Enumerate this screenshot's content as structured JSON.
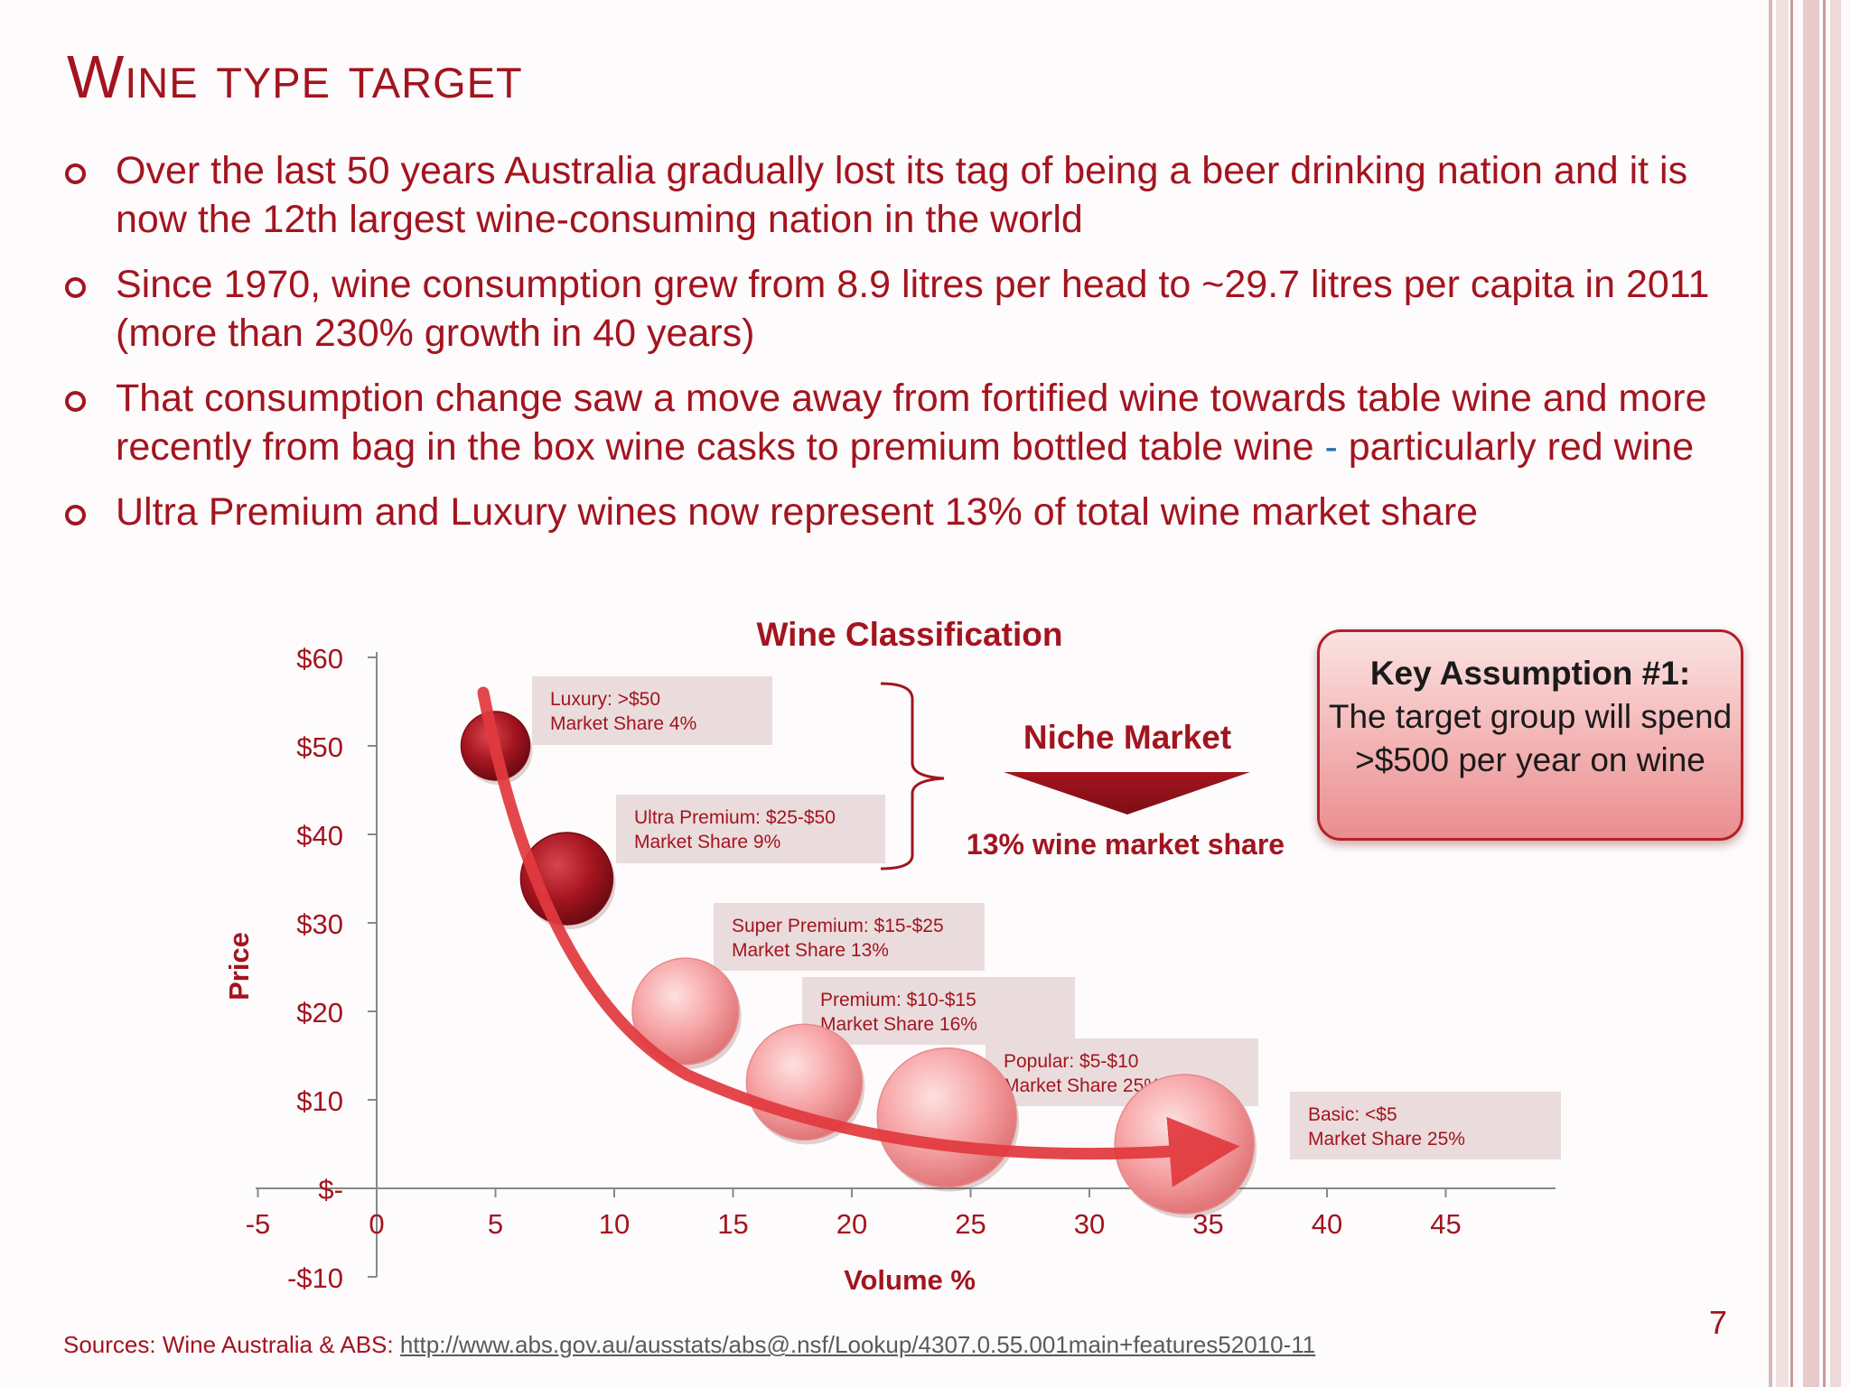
{
  "slide": {
    "title": "Wine type target",
    "bullets": [
      {
        "text": "Over the last 50 years Australia gradually lost its tag of being a beer drinking nation and it is now the 12th largest wine-consuming nation in the world"
      },
      {
        "text": "Since 1970, wine consumption grew from 8.9 litres per head to ~29.7 litres per capita in 2011 (more than 230% growth in 40 years)"
      },
      {
        "text_a": "That consumption change saw a move away from fortified wine towards table wine and more recently from bag in the box wine casks to premium bottled table wine ",
        "dash": "-",
        "text_b": " particularly red wine"
      },
      {
        "text": "Ultra Premium and Luxury wines now represent 13% of total wine market share"
      }
    ],
    "niche": {
      "label": "Niche Market",
      "share": "13% wine market share"
    },
    "callout": {
      "heading": "Key Assumption #1:",
      "body": "The target group will spend >$500 per year on wine"
    },
    "source": {
      "prefix": "Sources: Wine Australia & ABS: ",
      "link": "http://www.abs.gov.au/ausstats/abs@.nsf/Lookup/4307.0.55.001main+features52010-11"
    },
    "page_number": "7"
  },
  "colors": {
    "accent": "#a3141f",
    "bubble_dark": "#a3141f",
    "bubble_light": "#f49a9c",
    "arrow": "#e23a3f",
    "label_box": "#eadcdc"
  },
  "chart_data": {
    "type": "scatter",
    "title": "Wine Classification",
    "xlabel": "Volume %",
    "ylabel": "Price",
    "xlim": [
      -5,
      45
    ],
    "ylim": [
      -10,
      60
    ],
    "x_ticks": [
      "-5",
      "0",
      "5",
      "10",
      "15",
      "20",
      "25",
      "30",
      "35",
      "40",
      "45"
    ],
    "x_tick_values": [
      -5,
      0,
      5,
      10,
      15,
      20,
      25,
      30,
      35,
      40,
      45
    ],
    "y_ticks": [
      "-$10",
      "$-",
      "$10",
      "$20",
      "$30",
      "$40",
      "$50",
      "$60"
    ],
    "y_tick_values": [
      -10,
      0,
      10,
      20,
      30,
      40,
      50,
      60
    ],
    "points": [
      {
        "x": 5,
        "y": 50,
        "share": 4,
        "style": "dark",
        "label1": "Luxury: >$50",
        "label2": "Market Share 4%"
      },
      {
        "x": 8,
        "y": 35,
        "share": 9,
        "style": "dark",
        "label1": "Ultra Premium: $25-$50",
        "label2": "Market Share 9%"
      },
      {
        "x": 13,
        "y": 20,
        "share": 13,
        "style": "light",
        "label1": "Super Premium: $15-$25",
        "label2": "Market Share 13%"
      },
      {
        "x": 18,
        "y": 12,
        "share": 16,
        "style": "light",
        "label1": "Premium: $10-$15",
        "label2": "Market Share 16%"
      },
      {
        "x": 24,
        "y": 8,
        "share": 25,
        "style": "light",
        "label1": "Popular: $5-$10",
        "label2": "Market Share 25%"
      },
      {
        "x": 34,
        "y": 5,
        "share": 25,
        "style": "light",
        "label1": "Basic: <$5",
        "label2": "Market Share 25%"
      }
    ],
    "grid": false,
    "legend": "none"
  }
}
